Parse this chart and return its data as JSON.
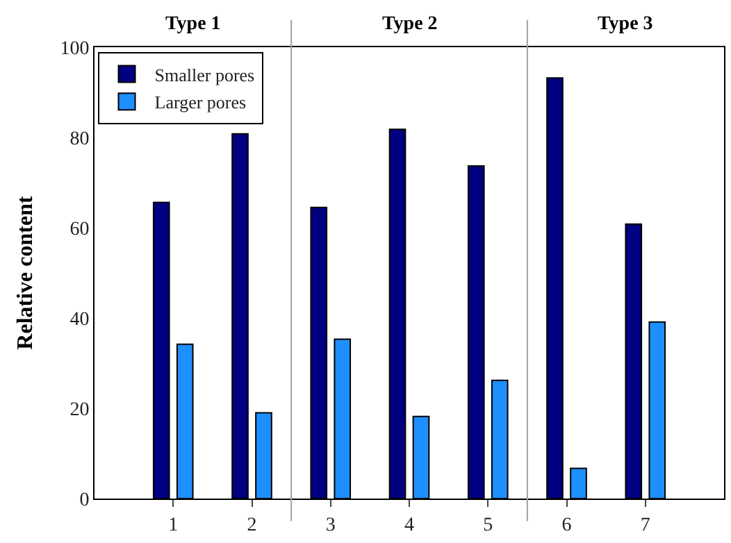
{
  "chart_data": {
    "type": "bar",
    "ylabel": "Relative content",
    "x": [
      1,
      2,
      3,
      4,
      5,
      6,
      7
    ],
    "series": [
      {
        "name": "Smaller pores",
        "color": "#000080",
        "values": [
          65.6,
          80.8,
          64.5,
          81.8,
          73.7,
          93.2,
          60.8
        ]
      },
      {
        "name": "Larger pores",
        "color": "#1e8fff",
        "values": [
          34.2,
          19.0,
          35.3,
          18.2,
          26.2,
          6.7,
          39.1
        ]
      }
    ],
    "xlim": [
      0,
      8
    ],
    "xticks": [
      1,
      2,
      3,
      4,
      5,
      6,
      7
    ],
    "ylim": [
      0,
      100
    ],
    "yticks": [
      0,
      20,
      40,
      60,
      80,
      100
    ],
    "ref_lines": [
      {
        "axis": "x",
        "value": 2.5,
        "color": "#a0a0a0"
      },
      {
        "axis": "x",
        "value": 5.5,
        "color": "#a0a0a0"
      }
    ],
    "annotations": [
      "Type 1",
      "Type 2",
      "Type 3"
    ],
    "legend": "top left"
  }
}
